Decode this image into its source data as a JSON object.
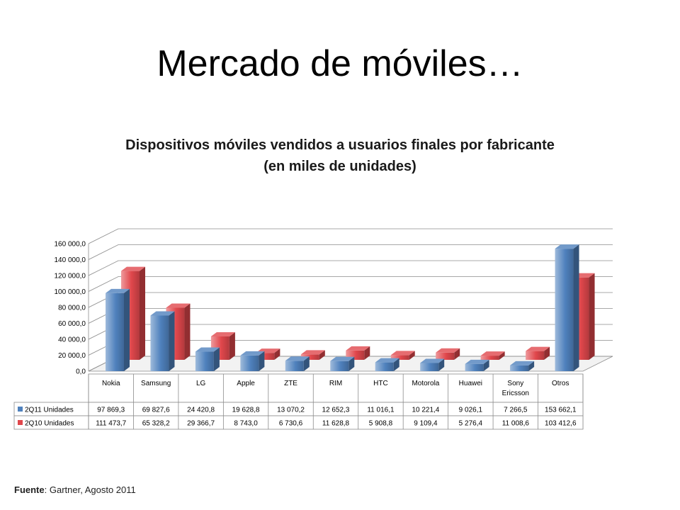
{
  "slide": {
    "title": "Mercado de móviles…"
  },
  "source": {
    "label": "Fuente",
    "text": ": Gartner, Agosto 2011"
  },
  "chart_data": {
    "type": "bar",
    "title": "Dispositivos móviles vendidos a usuarios finales por fabricante",
    "subtitle": "(en miles de unidades)",
    "categories": [
      "Nokia",
      "Samsung",
      "LG",
      "Apple",
      "ZTE",
      "RIM",
      "HTC",
      "Motorola",
      "Huawei",
      "Sony Ericsson",
      "Otros"
    ],
    "series": [
      {
        "name": "2Q11 Unidades",
        "color": "#4f81bd",
        "values": [
          97869.3,
          69827.6,
          24420.8,
          19628.8,
          13070.2,
          12652.3,
          11016.1,
          10221.4,
          9026.1,
          7266.5,
          153662.1
        ],
        "labels": [
          "97 869,3",
          "69 827,6",
          "24 420,8",
          "19 628,8",
          "13 070,2",
          "12 652,3",
          "11 016,1",
          "10 221,4",
          "9 026,1",
          "7 266,5",
          "153 662,1"
        ]
      },
      {
        "name": "2Q10 Unidades",
        "color": "#e0474c",
        "values": [
          111473.7,
          65328.2,
          29366.7,
          8743.0,
          6730.6,
          11628.8,
          5908.8,
          9109.4,
          5276.4,
          11008.6,
          103412.6
        ],
        "labels": [
          "111 473,7",
          "65 328,2",
          "29 366,7",
          "8 743,0",
          "6 730,6",
          "11 628,8",
          "5 908,8",
          "9 109,4",
          "5 276,4",
          "11 008,6",
          "103 412,6"
        ]
      }
    ],
    "yticks": [
      "0,0",
      "20 000,0",
      "40 000,0",
      "60 000,0",
      "80 000,0",
      "100 000,0",
      "120 000,0",
      "140 000,0",
      "160 000,0"
    ],
    "ylim": [
      0,
      160000
    ],
    "grid": true,
    "legend": "data table"
  }
}
